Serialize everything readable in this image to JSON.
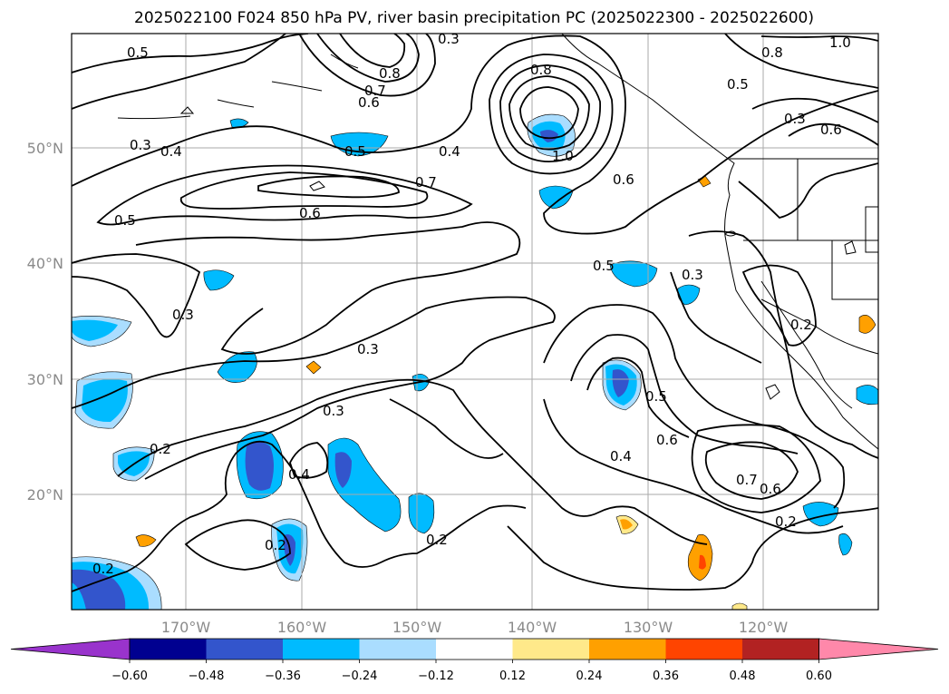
{
  "title": "2025022100 F024 850 hPa PV, river basin precipitation PC (2025022300 - 2025022600)",
  "lon_ticks": [
    "170°W",
    "160°W",
    "150°W",
    "140°W",
    "130°W",
    "120°W"
  ],
  "lat_ticks": [
    "50°N",
    "40°N",
    "30°N",
    "20°N"
  ],
  "colorbar": {
    "ticks": [
      "−0.60",
      "−0.48",
      "−0.36",
      "−0.24",
      "−0.12",
      "0.12",
      "0.24",
      "0.36",
      "0.48",
      "0.60"
    ],
    "colors": [
      "#9933cc",
      "#000090",
      "#3355cc",
      "#00bbff",
      "#aaddff",
      "#ffffff",
      "#ffe98a",
      "#ffa000",
      "#ff4400",
      "#b22222",
      "#ff88aa"
    ]
  },
  "contour_labels": [
    "0.5",
    "0.8",
    "0.7",
    "0.6",
    "0.3",
    "0.4",
    "0.5",
    "0.4",
    "0.8",
    "1.0",
    "0.7",
    "0.6",
    "0.5",
    "0.6",
    "0.8",
    "1.0",
    "0.5",
    "0.3",
    "0.6",
    "0.3",
    "0.5",
    "0.3",
    "0.3",
    "0.3",
    "0.2",
    "0.4",
    "0.2",
    "0.2",
    "0.2",
    "0.5",
    "0.6",
    "0.4",
    "0.7",
    "0.6",
    "0.2",
    "0.2",
    "0.3"
  ]
}
